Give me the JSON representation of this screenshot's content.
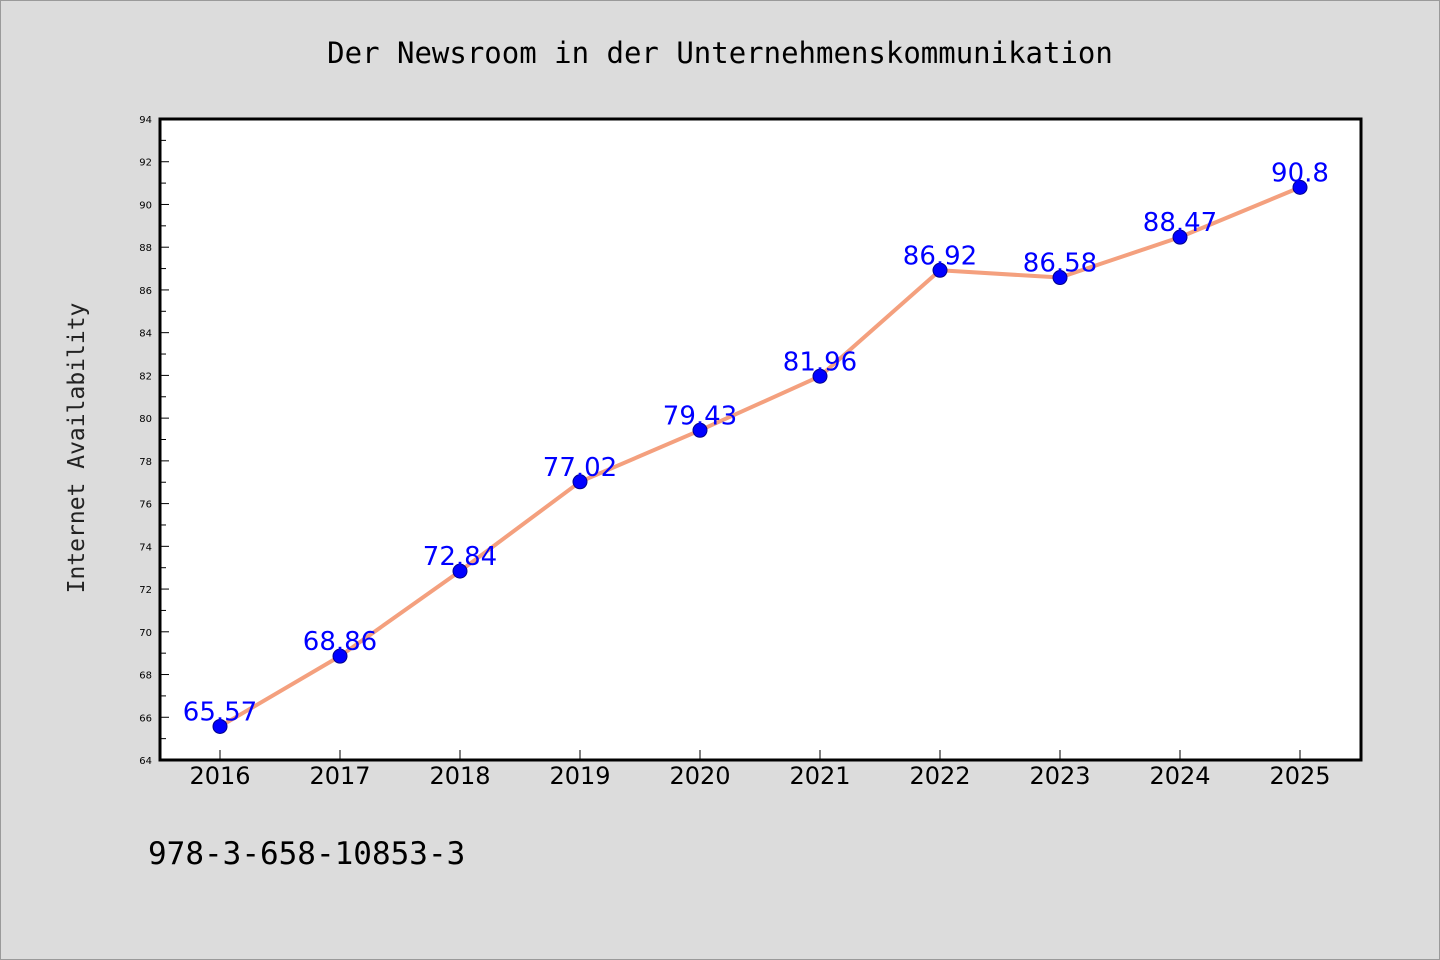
{
  "footer": {
    "isbn": "978-3-658-10853-3"
  },
  "colors": {
    "line": "#f4a07e",
    "marker": "#0000ff",
    "label": "#0000ff",
    "background": "#dcdcdc",
    "plot_background": "#ffffff"
  },
  "chart_data": {
    "type": "line",
    "title": "Der Newsroom in der Unternehmenskommunikation",
    "xlabel": "",
    "ylabel": "Internet Availability",
    "categories": [
      "2016",
      "2017",
      "2018",
      "2019",
      "2020",
      "2021",
      "2022",
      "2023",
      "2024",
      "2025"
    ],
    "series": [
      {
        "values": [
          65.57,
          68.86,
          72.84,
          77.02,
          79.43,
          81.96,
          86.92,
          86.58,
          88.47,
          90.8
        ]
      }
    ],
    "data_labels": [
      "65.57",
      "68.86",
      "72.84",
      "77.02",
      "79.43",
      "81.96",
      "86.92",
      "86.58",
      "88.47",
      "90.8"
    ],
    "ylim": [
      64,
      94
    ],
    "yticks": [
      "64",
      "66",
      "68",
      "70",
      "72",
      "74",
      "76",
      "78",
      "80",
      "82",
      "84",
      "86",
      "88",
      "90",
      "92",
      "94"
    ],
    "grid": false,
    "legend": "none"
  }
}
